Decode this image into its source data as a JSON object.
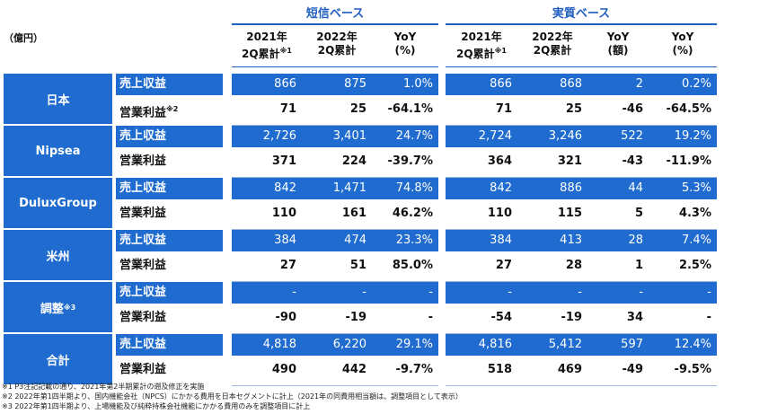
{
  "unit_label": "（億円）",
  "groups": {
    "tanshin": "短信ベース",
    "jisshitsu": "実質ベース"
  },
  "headers": [
    {
      "line1": "2021年",
      "line2": "2Q累計",
      "note": "※1"
    },
    {
      "line1": "2022年",
      "line2": "2Q累計",
      "note": ""
    },
    {
      "line1": "YoY",
      "line2": "(%)",
      "note": ""
    },
    {
      "line1": "2021年",
      "line2": "2Q累計",
      "note": "※1"
    },
    {
      "line1": "2022年",
      "line2": "2Q累計",
      "note": ""
    },
    {
      "line1": "YoY",
      "line2": "(額)",
      "note": ""
    },
    {
      "line1": "YoY",
      "line2": "(%)",
      "note": ""
    }
  ],
  "segments": [
    {
      "name": "日本",
      "note": "",
      "rows": [
        {
          "label": "売上収益",
          "note": "",
          "values": [
            "866",
            "875",
            "1.0%",
            "866",
            "868",
            "2",
            "0.2%"
          ]
        },
        {
          "label": "営業利益",
          "note": "※2",
          "values": [
            "71",
            "25",
            "-64.1%",
            "71",
            "25",
            "-46",
            "-64.5%"
          ]
        }
      ]
    },
    {
      "name": "Nipsea",
      "note": "",
      "rows": [
        {
          "label": "売上収益",
          "note": "",
          "values": [
            "2,726",
            "3,401",
            "24.7%",
            "2,724",
            "3,246",
            "522",
            "19.2%"
          ]
        },
        {
          "label": "営業利益",
          "note": "",
          "values": [
            "371",
            "224",
            "-39.7%",
            "364",
            "321",
            "-43",
            "-11.9%"
          ]
        }
      ]
    },
    {
      "name": "DuluxGroup",
      "note": "",
      "rows": [
        {
          "label": "売上収益",
          "note": "",
          "values": [
            "842",
            "1,471",
            "74.8%",
            "842",
            "886",
            "44",
            "5.3%"
          ]
        },
        {
          "label": "営業利益",
          "note": "",
          "values": [
            "110",
            "161",
            "46.2%",
            "110",
            "115",
            "5",
            "4.3%"
          ]
        }
      ]
    },
    {
      "name": "米州",
      "note": "",
      "rows": [
        {
          "label": "売上収益",
          "note": "",
          "values": [
            "384",
            "474",
            "23.3%",
            "384",
            "413",
            "28",
            "7.4%"
          ]
        },
        {
          "label": "営業利益",
          "note": "",
          "values": [
            "27",
            "51",
            "85.0%",
            "27",
            "28",
            "1",
            "2.5%"
          ]
        }
      ]
    },
    {
      "name": "調整",
      "note": "※3",
      "rows": [
        {
          "label": "売上収益",
          "note": "",
          "values": [
            "-",
            "-",
            "-",
            "-",
            "-",
            "-",
            "-"
          ]
        },
        {
          "label": "営業利益",
          "note": "",
          "values": [
            "-90",
            "-19",
            "-",
            "-54",
            "-19",
            "34",
            "-"
          ]
        }
      ]
    },
    {
      "name": "合計",
      "note": "",
      "rows": [
        {
          "label": "売上収益",
          "note": "",
          "values": [
            "4,818",
            "6,220",
            "29.1%",
            "4,816",
            "5,412",
            "597",
            "12.4%"
          ]
        },
        {
          "label": "営業利益",
          "note": "",
          "values": [
            "490",
            "442",
            "-9.7%",
            "518",
            "469",
            "-49",
            "-9.5%"
          ]
        }
      ]
    }
  ],
  "footnotes": [
    "※1 P3注記記載の通り、2021年第2半期累計の遡及修正を実施",
    "※2 2022年第1四半期より、国内機能会社（NPCS）にかかる費用を日本セグメントに計上（2021年の同費用相当額は、調整項目として表示）",
    "※3 2022年第1四半期より、上場機能及び純粋持株会社機能にかかる費用のみを調整項目に計上"
  ]
}
